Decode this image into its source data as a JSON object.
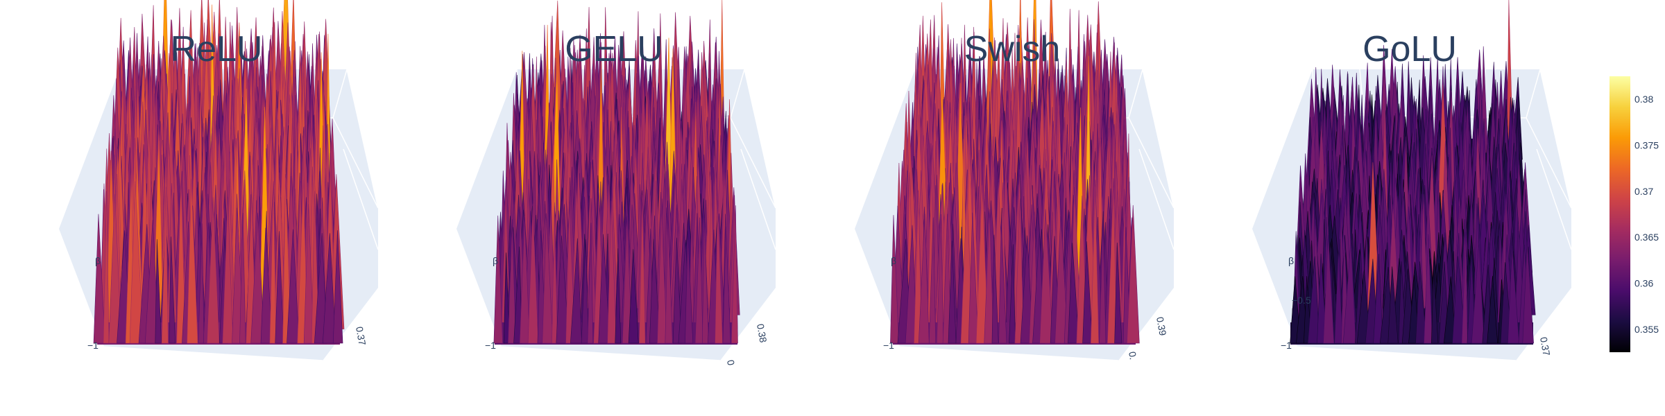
{
  "chart_data": [
    {
      "type": "surface3d",
      "title": "ReLU",
      "axis_letter": "β",
      "tick_left": "−1",
      "tick_right": "0.37",
      "tick_right2": "",
      "tick_mid": "",
      "z_range": [
        0.35,
        0.383
      ],
      "mean": 0.3655,
      "spread": 0.0045,
      "seed": 11
    },
    {
      "type": "surface3d",
      "title": "GELU",
      "axis_letter": "β",
      "tick_left": "−1",
      "tick_right": "0.38",
      "tick_right2": "0",
      "tick_mid": "",
      "z_range": [
        0.35,
        0.383
      ],
      "mean": 0.3635,
      "spread": 0.0045,
      "seed": 23
    },
    {
      "type": "surface3d",
      "title": "Swish",
      "axis_letter": "β",
      "tick_left": "−1",
      "tick_right": "0.39",
      "tick_right2": "0.",
      "tick_mid": "",
      "z_range": [
        0.35,
        0.383
      ],
      "mean": 0.3645,
      "spread": 0.0045,
      "seed": 37
    },
    {
      "type": "surface3d",
      "title": "GoLU",
      "axis_letter": "β",
      "tick_left": "−1",
      "tick_right": "0.37",
      "tick_right2": "",
      "tick_mid": "−0.5",
      "z_range": [
        0.35,
        0.383
      ],
      "mean": 0.3585,
      "spread": 0.0035,
      "seed": 53
    }
  ],
  "colorbar": {
    "ticks": [
      "0.38",
      "0.375",
      "0.37",
      "0.365",
      "0.36",
      "0.355"
    ],
    "min": 0.3525,
    "max": 0.3825,
    "colorscale": [
      "#000004",
      "#1b0c41",
      "#4a0c6b",
      "#781c6d",
      "#a52c60",
      "#cf4446",
      "#ed6925",
      "#fb9b06",
      "#f7d13d",
      "#fcffa4"
    ]
  },
  "colors": {
    "scene_bg": "#e5ecf6",
    "grid": "#ffffff",
    "text": "#2a3f5f"
  }
}
